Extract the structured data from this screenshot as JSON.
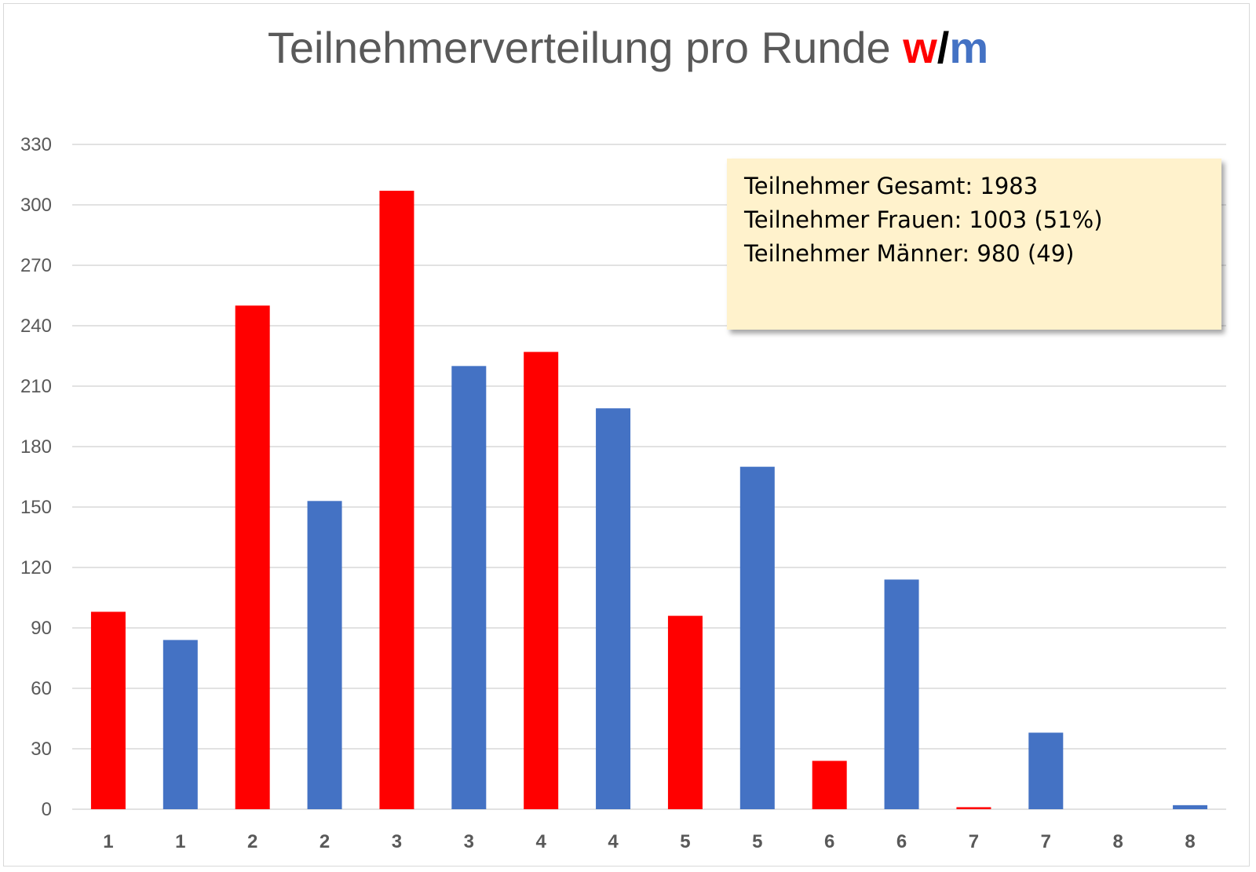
{
  "title": {
    "main": "Teilnehmerverteilung pro Runde ",
    "w": "w",
    "slash": "/",
    "m": "m"
  },
  "info_box": {
    "lines": [
      "Teilnehmer Gesamt: 1983",
      "Teilnehmer Frauen: 1003 (51%)",
      "Teilnehmer Männer: 980 (49)"
    ]
  },
  "colors": {
    "women": "#ff0000",
    "men": "#4472c4",
    "grid": "#d9d9d9",
    "text": "#595959"
  },
  "chart_data": {
    "type": "bar",
    "title": "Teilnehmerverteilung pro Runde w/m",
    "categories": [
      "1",
      "1",
      "2",
      "2",
      "3",
      "3",
      "4",
      "4",
      "5",
      "5",
      "6",
      "6",
      "7",
      "7",
      "8",
      "8"
    ],
    "values": [
      98,
      84,
      250,
      153,
      307,
      220,
      227,
      199,
      96,
      170,
      24,
      114,
      1,
      38,
      0,
      2
    ],
    "bar_colors": [
      "#ff0000",
      "#4472c4",
      "#ff0000",
      "#4472c4",
      "#ff0000",
      "#4472c4",
      "#ff0000",
      "#4472c4",
      "#ff0000",
      "#4472c4",
      "#ff0000",
      "#4472c4",
      "#ff0000",
      "#4472c4",
      "#ff0000",
      "#4472c4"
    ],
    "yticks": [
      0,
      30,
      60,
      90,
      120,
      150,
      180,
      210,
      240,
      270,
      300,
      330
    ],
    "ylim": [
      0,
      330
    ],
    "xlabel": "",
    "ylabel": "",
    "grid": true,
    "legend": false
  }
}
